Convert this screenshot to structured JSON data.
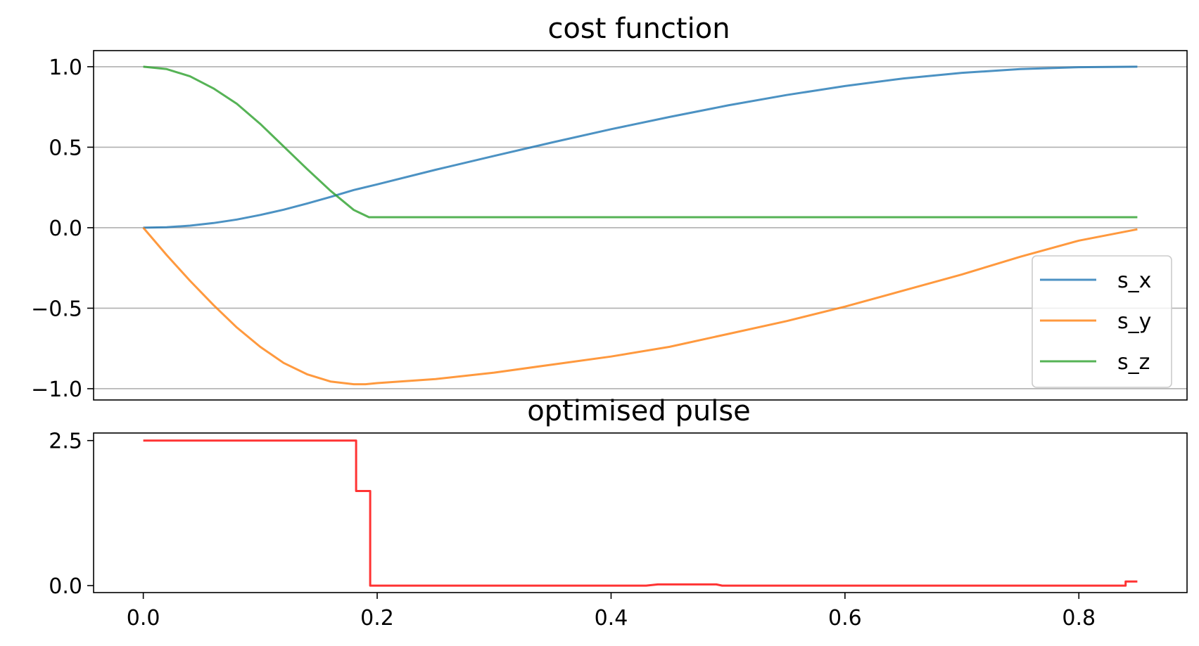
{
  "chart_data": [
    {
      "type": "line",
      "title": "cost function",
      "xlabel": "",
      "ylabel": "",
      "xlim": [
        -0.0425,
        0.8925
      ],
      "ylim": [
        -1.07,
        1.1
      ],
      "grid": "y",
      "legend": "lower right",
      "yticks": [
        1.0,
        0.5,
        0.0,
        -0.5,
        -1.0
      ],
      "ytick_labels": [
        "1.0",
        "0.5",
        "0.0",
        "−0.5",
        "−1.0"
      ],
      "series": [
        {
          "name": "s_x",
          "color": "#1f77b4",
          "x": [
            0,
            0.02,
            0.04,
            0.06,
            0.08,
            0.1,
            0.12,
            0.14,
            0.16,
            0.18,
            0.2,
            0.25,
            0.3,
            0.35,
            0.4,
            0.45,
            0.5,
            0.55,
            0.6,
            0.65,
            0.7,
            0.75,
            0.8,
            0.85
          ],
          "values": [
            0.0,
            0.003,
            0.013,
            0.029,
            0.051,
            0.079,
            0.112,
            0.15,
            0.191,
            0.234,
            0.269,
            0.36,
            0.446,
            0.53,
            0.612,
            0.688,
            0.76,
            0.824,
            0.88,
            0.927,
            0.962,
            0.985,
            0.997,
            1.0
          ]
        },
        {
          "name": "s_y",
          "color": "#ff7f0e",
          "x": [
            0,
            0.02,
            0.04,
            0.06,
            0.08,
            0.1,
            0.12,
            0.14,
            0.16,
            0.18,
            0.19,
            0.2,
            0.25,
            0.3,
            0.35,
            0.4,
            0.45,
            0.5,
            0.55,
            0.6,
            0.65,
            0.7,
            0.75,
            0.8,
            0.85
          ],
          "values": [
            0.0,
            -0.17,
            -0.33,
            -0.48,
            -0.62,
            -0.74,
            -0.84,
            -0.91,
            -0.955,
            -0.972,
            -0.972,
            -0.965,
            -0.94,
            -0.9,
            -0.85,
            -0.8,
            -0.74,
            -0.66,
            -0.58,
            -0.49,
            -0.39,
            -0.29,
            -0.18,
            -0.08,
            -0.01
          ]
        },
        {
          "name": "s_z",
          "color": "#2ca02c",
          "x": [
            0,
            0.02,
            0.04,
            0.06,
            0.08,
            0.1,
            0.12,
            0.14,
            0.16,
            0.18,
            0.193,
            0.25,
            0.3,
            0.4,
            0.5,
            0.6,
            0.7,
            0.8,
            0.85
          ],
          "values": [
            1.0,
            0.985,
            0.94,
            0.865,
            0.77,
            0.645,
            0.505,
            0.365,
            0.23,
            0.11,
            0.065,
            0.065,
            0.065,
            0.065,
            0.065,
            0.065,
            0.065,
            0.065,
            0.065
          ]
        }
      ]
    },
    {
      "type": "line",
      "step": true,
      "title": "optimised pulse",
      "xlabel": "",
      "ylabel": "",
      "xlim": [
        -0.0425,
        0.8925
      ],
      "ylim": [
        -0.12,
        2.63
      ],
      "xticks": [
        0.0,
        0.2,
        0.4,
        0.6,
        0.8
      ],
      "xtick_labels": [
        "0.0",
        "0.2",
        "0.4",
        "0.6",
        "0.8"
      ],
      "yticks": [
        2.5,
        0.0
      ],
      "ytick_labels": [
        "2.5",
        "0.0"
      ],
      "series": [
        {
          "color": "#ff0000",
          "x": [
            0,
            0.182,
            0.182,
            0.194,
            0.194,
            0.33,
            0.43,
            0.44,
            0.49,
            0.495,
            0.52,
            0.84,
            0.84,
            0.85
          ],
          "values": [
            2.5,
            2.5,
            1.63,
            1.63,
            0.0,
            0.0,
            0.0,
            0.02,
            0.02,
            0.0,
            0.0,
            0.0,
            0.07,
            0.07
          ]
        }
      ]
    }
  ]
}
